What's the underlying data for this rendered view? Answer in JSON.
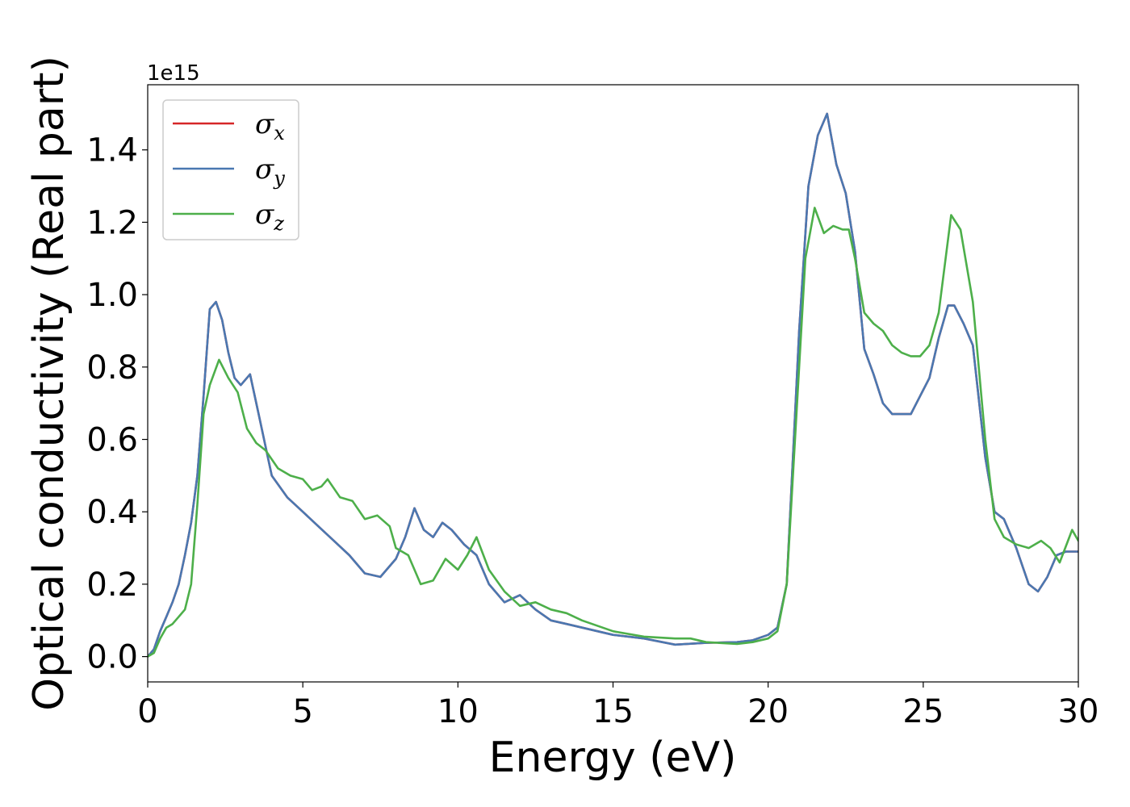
{
  "chart_data": {
    "type": "line",
    "title": "",
    "xlabel": "Energy (eV)",
    "ylabel": "Optical conductivity (Real part)",
    "y_offset_label": "1e15",
    "xlim": [
      0,
      30
    ],
    "ylim": [
      -0.07,
      1.58
    ],
    "xticks": [
      0,
      5,
      10,
      15,
      20,
      25,
      30
    ],
    "xtick_labels": [
      "0",
      "5",
      "10",
      "15",
      "20",
      "25",
      "30"
    ],
    "yticks": [
      0.0,
      0.2,
      0.4,
      0.6,
      0.8,
      1.0,
      1.2,
      1.4
    ],
    "ytick_labels": [
      "0.0",
      "0.2",
      "0.4",
      "0.6",
      "0.8",
      "1.0",
      "1.2",
      "1.4"
    ],
    "grid": false,
    "legend_position": "top-left",
    "series": [
      {
        "name": "σx",
        "legend_base": "σ",
        "legend_sub": "x",
        "color": "#d62728",
        "x": [
          0,
          0.2,
          0.4,
          0.6,
          0.8,
          1.0,
          1.2,
          1.4,
          1.6,
          1.8,
          2.0,
          2.2,
          2.4,
          2.6,
          2.8,
          3.0,
          3.3,
          3.6,
          4.0,
          4.5,
          5.0,
          5.5,
          6.0,
          6.5,
          7.0,
          7.5,
          8.0,
          8.3,
          8.6,
          8.9,
          9.2,
          9.5,
          9.8,
          10.2,
          10.6,
          11.0,
          11.5,
          12.0,
          12.5,
          13.0,
          13.5,
          14.0,
          15.0,
          16.0,
          17.0,
          18.0,
          19.0,
          19.5,
          20.0,
          20.3,
          20.6,
          21.0,
          21.3,
          21.6,
          21.9,
          22.2,
          22.5,
          22.8,
          23.1,
          23.4,
          23.7,
          24.0,
          24.3,
          24.6,
          24.9,
          25.2,
          25.5,
          25.8,
          26.0,
          26.3,
          26.6,
          27.0,
          27.3,
          27.6,
          28.0,
          28.4,
          28.7,
          29.0,
          29.3,
          29.6,
          30.0
        ],
        "values": [
          0.0,
          0.02,
          0.07,
          0.11,
          0.15,
          0.2,
          0.28,
          0.37,
          0.5,
          0.72,
          0.96,
          0.98,
          0.93,
          0.84,
          0.77,
          0.75,
          0.78,
          0.66,
          0.5,
          0.44,
          0.4,
          0.36,
          0.32,
          0.28,
          0.23,
          0.22,
          0.27,
          0.33,
          0.41,
          0.35,
          0.33,
          0.37,
          0.35,
          0.31,
          0.28,
          0.2,
          0.15,
          0.17,
          0.13,
          0.1,
          0.09,
          0.08,
          0.06,
          0.05,
          0.033,
          0.038,
          0.04,
          0.045,
          0.06,
          0.08,
          0.2,
          0.9,
          1.3,
          1.44,
          1.5,
          1.36,
          1.28,
          1.12,
          0.85,
          0.78,
          0.7,
          0.67,
          0.67,
          0.67,
          0.72,
          0.77,
          0.88,
          0.97,
          0.97,
          0.92,
          0.86,
          0.55,
          0.4,
          0.38,
          0.3,
          0.2,
          0.18,
          0.22,
          0.28,
          0.29,
          0.29
        ]
      },
      {
        "name": "σy",
        "legend_base": "σ",
        "legend_sub": "y",
        "color": "#4a78b1",
        "x": [
          0,
          0.2,
          0.4,
          0.6,
          0.8,
          1.0,
          1.2,
          1.4,
          1.6,
          1.8,
          2.0,
          2.2,
          2.4,
          2.6,
          2.8,
          3.0,
          3.3,
          3.6,
          4.0,
          4.5,
          5.0,
          5.5,
          6.0,
          6.5,
          7.0,
          7.5,
          8.0,
          8.3,
          8.6,
          8.9,
          9.2,
          9.5,
          9.8,
          10.2,
          10.6,
          11.0,
          11.5,
          12.0,
          12.5,
          13.0,
          13.5,
          14.0,
          15.0,
          16.0,
          17.0,
          18.0,
          19.0,
          19.5,
          20.0,
          20.3,
          20.6,
          21.0,
          21.3,
          21.6,
          21.9,
          22.2,
          22.5,
          22.8,
          23.1,
          23.4,
          23.7,
          24.0,
          24.3,
          24.6,
          24.9,
          25.2,
          25.5,
          25.8,
          26.0,
          26.3,
          26.6,
          27.0,
          27.3,
          27.6,
          28.0,
          28.4,
          28.7,
          29.0,
          29.3,
          29.6,
          30.0
        ],
        "values": [
          0.0,
          0.02,
          0.07,
          0.11,
          0.15,
          0.2,
          0.28,
          0.37,
          0.5,
          0.72,
          0.96,
          0.98,
          0.93,
          0.84,
          0.77,
          0.75,
          0.78,
          0.66,
          0.5,
          0.44,
          0.4,
          0.36,
          0.32,
          0.28,
          0.23,
          0.22,
          0.27,
          0.33,
          0.41,
          0.35,
          0.33,
          0.37,
          0.35,
          0.31,
          0.28,
          0.2,
          0.15,
          0.17,
          0.13,
          0.1,
          0.09,
          0.08,
          0.06,
          0.05,
          0.033,
          0.038,
          0.04,
          0.045,
          0.06,
          0.08,
          0.2,
          0.9,
          1.3,
          1.44,
          1.5,
          1.36,
          1.28,
          1.12,
          0.85,
          0.78,
          0.7,
          0.67,
          0.67,
          0.67,
          0.72,
          0.77,
          0.88,
          0.97,
          0.97,
          0.92,
          0.86,
          0.55,
          0.4,
          0.38,
          0.3,
          0.2,
          0.18,
          0.22,
          0.28,
          0.29,
          0.29
        ]
      },
      {
        "name": "σz",
        "legend_base": "σ",
        "legend_sub": "z",
        "color": "#4daf4a",
        "x": [
          0,
          0.2,
          0.4,
          0.6,
          0.8,
          1.0,
          1.2,
          1.4,
          1.6,
          1.8,
          2.0,
          2.3,
          2.6,
          2.9,
          3.2,
          3.5,
          3.8,
          4.2,
          4.6,
          5.0,
          5.3,
          5.6,
          5.8,
          6.2,
          6.6,
          7.0,
          7.4,
          7.8,
          8.0,
          8.4,
          8.8,
          9.2,
          9.6,
          10.0,
          10.3,
          10.6,
          11.0,
          11.5,
          12.0,
          12.5,
          13.0,
          13.5,
          14.0,
          15.0,
          16.0,
          17.0,
          17.5,
          18.0,
          19.0,
          19.5,
          20.0,
          20.3,
          20.6,
          21.0,
          21.2,
          21.5,
          21.8,
          22.1,
          22.4,
          22.6,
          22.8,
          23.1,
          23.4,
          23.7,
          24.0,
          24.3,
          24.6,
          24.9,
          25.2,
          25.5,
          25.9,
          26.2,
          26.6,
          27.0,
          27.3,
          27.6,
          28.0,
          28.4,
          28.8,
          29.1,
          29.4,
          29.8,
          30.0
        ],
        "values": [
          0.0,
          0.01,
          0.05,
          0.08,
          0.09,
          0.11,
          0.13,
          0.2,
          0.42,
          0.67,
          0.75,
          0.82,
          0.77,
          0.73,
          0.63,
          0.59,
          0.57,
          0.52,
          0.5,
          0.49,
          0.46,
          0.47,
          0.49,
          0.44,
          0.43,
          0.38,
          0.39,
          0.36,
          0.3,
          0.28,
          0.2,
          0.21,
          0.27,
          0.24,
          0.28,
          0.33,
          0.24,
          0.18,
          0.14,
          0.15,
          0.13,
          0.12,
          0.1,
          0.07,
          0.055,
          0.05,
          0.05,
          0.04,
          0.035,
          0.04,
          0.05,
          0.07,
          0.2,
          0.8,
          1.1,
          1.24,
          1.17,
          1.19,
          1.18,
          1.18,
          1.1,
          0.95,
          0.92,
          0.9,
          0.86,
          0.84,
          0.83,
          0.83,
          0.86,
          0.95,
          1.22,
          1.18,
          0.98,
          0.6,
          0.38,
          0.33,
          0.31,
          0.3,
          0.32,
          0.3,
          0.26,
          0.35,
          0.32
        ]
      }
    ]
  }
}
